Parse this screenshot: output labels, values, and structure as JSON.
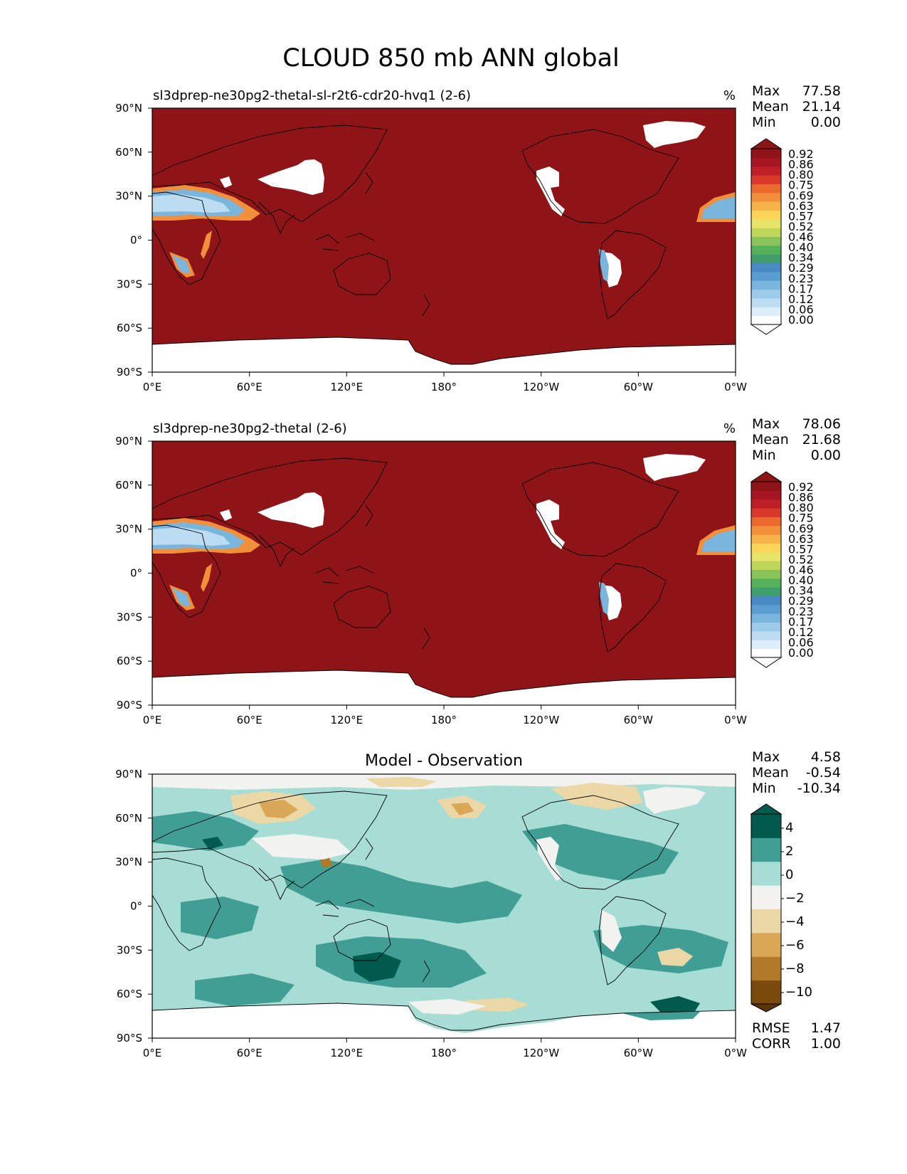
{
  "figure": {
    "title": "CLOUD 850 mb ANN global"
  },
  "colormaps": {
    "cloud": [
      "#ffffff",
      "#ddeefa",
      "#bcdcf2",
      "#9ccbe9",
      "#7ab5dd",
      "#5a9dd0",
      "#4a8ac4",
      "#3f9e6c",
      "#55b25a",
      "#88c45a",
      "#bcd75a",
      "#e8e46a",
      "#fbd458",
      "#f8b24a",
      "#f28f3b",
      "#ea6a2e",
      "#d8392a",
      "#bf1f26",
      "#a51622",
      "#8e1418"
    ],
    "diff": [
      "#7a4a0c",
      "#b07a2a",
      "#d9a755",
      "#ecd7a6",
      "#f2f2f0",
      "#a7ddd5",
      "#419e95",
      "#005a4e"
    ]
  },
  "chart_data": [
    {
      "type": "heatmap",
      "panel": "test",
      "title_left": "sl3dprep-ne30pg2-thetal-sl-r2t6-cdr20-hvq1 (2-6)",
      "units": "%",
      "stats": {
        "max_label": "Max",
        "max": "77.58",
        "mean_label": "Mean",
        "mean": "21.14",
        "min_label": "Min",
        "min": "0.00"
      },
      "x_ticks": [
        "0°E",
        "60°E",
        "120°E",
        "180°",
        "120°W",
        "60°W",
        "0°W"
      ],
      "y_ticks": [
        "90°N",
        "60°N",
        "30°N",
        "0°",
        "30°S",
        "60°S",
        "90°S"
      ],
      "colorbar_levels": [
        "0.00",
        "0.06",
        "0.12",
        "0.17",
        "0.23",
        "0.29",
        "0.34",
        "0.40",
        "0.46",
        "0.52",
        "0.57",
        "0.63",
        "0.69",
        "0.75",
        "0.80",
        "0.86",
        "0.92"
      ],
      "colorbar_extend": "both",
      "colormap": "cloud",
      "background_level": 19,
      "grid": false
    },
    {
      "type": "heatmap",
      "panel": "reference",
      "title_left": "sl3dprep-ne30pg2-thetal (2-6)",
      "units": "%",
      "stats": {
        "max_label": "Max",
        "max": "78.06",
        "mean_label": "Mean",
        "mean": "21.68",
        "min_label": "Min",
        "min": "0.00"
      },
      "x_ticks": [
        "0°E",
        "60°E",
        "120°E",
        "180°",
        "120°W",
        "60°W",
        "0°W"
      ],
      "y_ticks": [
        "90°N",
        "60°N",
        "30°N",
        "0°",
        "30°S",
        "60°S",
        "90°S"
      ],
      "colorbar_levels": [
        "0.00",
        "0.06",
        "0.12",
        "0.17",
        "0.23",
        "0.29",
        "0.34",
        "0.40",
        "0.46",
        "0.52",
        "0.57",
        "0.63",
        "0.69",
        "0.75",
        "0.80",
        "0.86",
        "0.92"
      ],
      "colorbar_extend": "both",
      "colormap": "cloud",
      "background_level": 19,
      "grid": false
    },
    {
      "type": "heatmap",
      "panel": "difference",
      "title_center": "Model - Observation",
      "stats": {
        "max_label": "Max",
        "max": "4.58",
        "mean_label": "Mean",
        "mean": "-0.54",
        "min_label": "Min",
        "min": "-10.34"
      },
      "x_ticks": [
        "0°E",
        "60°E",
        "120°E",
        "180°",
        "120°W",
        "60°W",
        "0°W"
      ],
      "y_ticks": [
        "90°N",
        "60°N",
        "30°N",
        "0°",
        "30°S",
        "60°S",
        "90°S"
      ],
      "colorbar_levels": [
        "−10",
        "−8",
        "−6",
        "−4",
        "−2",
        "0",
        "2",
        "4"
      ],
      "colorbar_extend": "both",
      "colormap": "diff",
      "metrics": {
        "rmse_label": "RMSE",
        "rmse": "1.47",
        "corr_label": "CORR",
        "corr": "1.00"
      },
      "grid": false
    }
  ]
}
